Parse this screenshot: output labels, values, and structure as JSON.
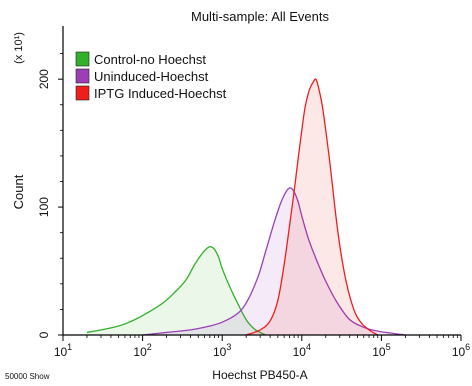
{
  "chart_data": {
    "type": "area",
    "title": "Multi-sample: All Events",
    "xlabel": "Hoechst PB450-A",
    "ylabel": "Count",
    "y_multiplier": "(x 10¹)",
    "footnote": "50000 Show",
    "x_scale": "log",
    "x_range": [
      10,
      1000000
    ],
    "y_range": [
      0,
      240
    ],
    "x_ticks": [
      {
        "base": "10",
        "exp": "1",
        "value": 10
      },
      {
        "base": "10",
        "exp": "2",
        "value": 100
      },
      {
        "base": "10",
        "exp": "3",
        "value": 1000
      },
      {
        "base": "10",
        "exp": "4",
        "value": 10000
      },
      {
        "base": "10",
        "exp": "5",
        "value": 100000
      },
      {
        "base": "10",
        "exp": "6",
        "value": 1000000
      }
    ],
    "y_ticks": [
      {
        "label": "0",
        "value": 0
      },
      {
        "label": "100",
        "value": 100
      },
      {
        "label": "200",
        "value": 200
      }
    ],
    "grid": false,
    "legend_position": "top-left",
    "series": [
      {
        "name": "Control-no Hoechst",
        "color": "#33b02a",
        "fill": "#33b02a",
        "x": [
          20,
          30,
          50,
          80,
          120,
          180,
          250,
          350,
          450,
          550,
          650,
          720,
          800,
          900,
          1000,
          1200,
          1500,
          2000,
          2500,
          3000,
          3500
        ],
        "y": [
          2,
          4,
          7,
          12,
          18,
          25,
          33,
          43,
          55,
          63,
          68,
          69,
          67,
          61,
          52,
          40,
          27,
          12,
          5,
          2,
          0
        ]
      },
      {
        "name": "Uninduced-Hoechst",
        "color": "#9a3fb6",
        "fill": "#9a3fb6",
        "x": [
          100,
          200,
          400,
          700,
          1000,
          1500,
          2000,
          2800,
          3500,
          4500,
          5500,
          6500,
          7200,
          8000,
          9000,
          10000,
          12000,
          15000,
          20000,
          28000,
          40000,
          60000,
          90000,
          150000,
          200000
        ],
        "y": [
          0,
          2,
          4,
          7,
          10,
          16,
          25,
          45,
          65,
          88,
          104,
          113,
          115,
          112,
          104,
          93,
          76,
          60,
          42,
          25,
          12,
          6,
          3,
          1,
          0
        ]
      },
      {
        "name": "IPTG Induced-Hoechst",
        "color": "#f01d1d",
        "fill": "#f01d1d",
        "x": [
          2000,
          3000,
          4000,
          5000,
          6000,
          7000,
          8000,
          9000,
          10000,
          11000,
          12500,
          14000,
          15000,
          16000,
          18000,
          20000,
          23000,
          26000,
          30000,
          36000,
          45000,
          55000,
          70000,
          90000
        ],
        "y": [
          0,
          4,
          11,
          27,
          55,
          85,
          112,
          138,
          160,
          178,
          192,
          198,
          200,
          195,
          180,
          160,
          130,
          100,
          70,
          42,
          20,
          10,
          4,
          0
        ]
      }
    ]
  }
}
